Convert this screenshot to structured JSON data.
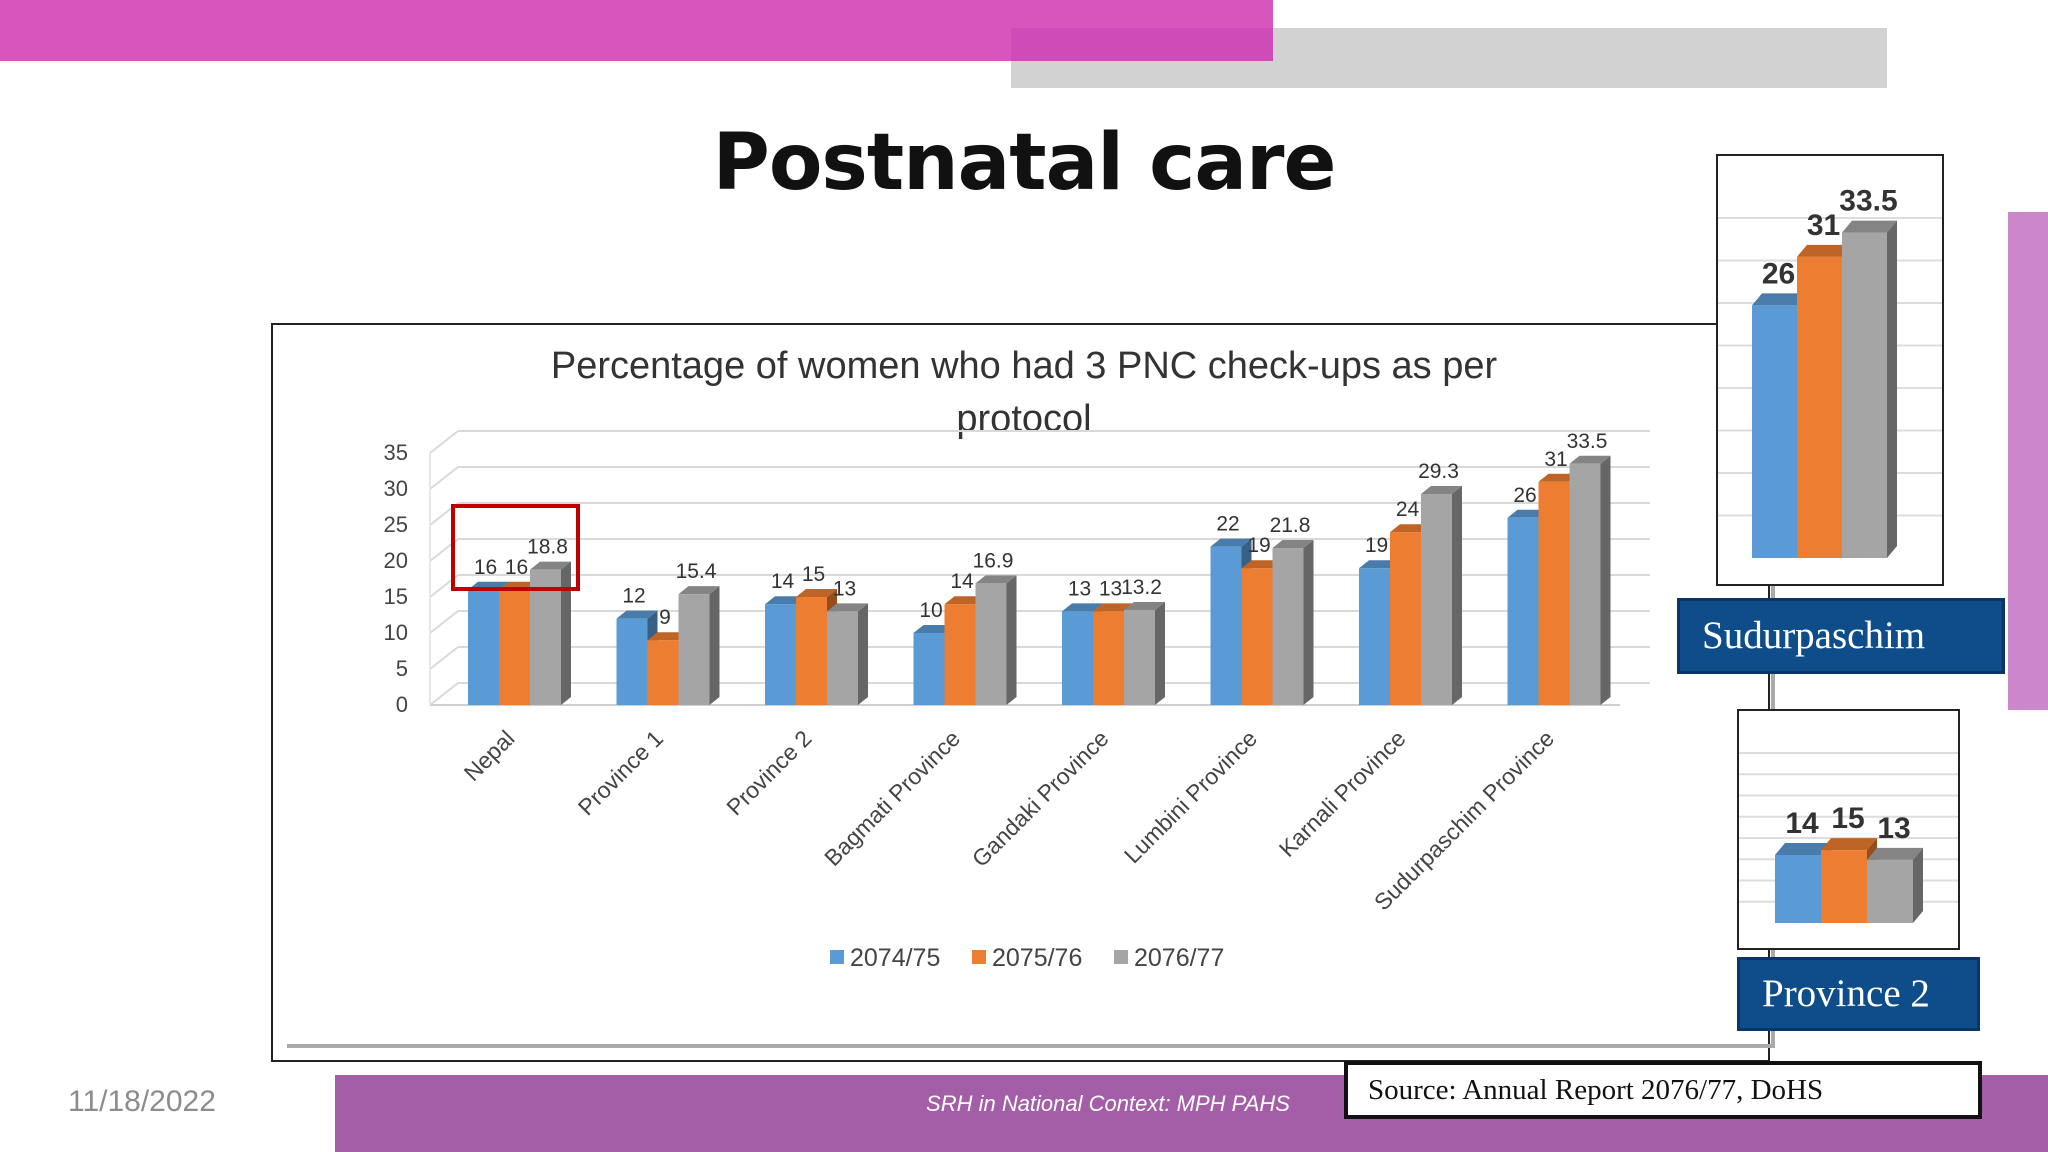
{
  "slide": {
    "title": "Postnatal care",
    "date": "11/18/2022",
    "footer": "SRH in National Context: MPH PAHS",
    "source": "Source: Annual Report 2076/77, DoHS",
    "callout_sudurpaschim": "Sudurpaschim",
    "callout_province2": "Province 2"
  },
  "colors": {
    "series": [
      "#5b9bd5",
      "#ed7d31",
      "#a5a5a5"
    ],
    "highlight_box": "#c00000",
    "accent_pink": "#d955be",
    "label_box": "#0f4c8a"
  },
  "chart_data": {
    "type": "bar",
    "title": "Percentage of women who had 3 PNC check-ups as per protocol",
    "title_lines": [
      "Percentage of women who had 3 PNC check-ups as per",
      "protocol"
    ],
    "categories": [
      "Nepal",
      "Province 1",
      "Province 2",
      "Bagmati Province",
      "Gandaki Province",
      "Lumbini Province",
      "Karnali Province",
      "Sudurpaschim Province"
    ],
    "series": [
      {
        "name": "2074/75",
        "values": [
          16,
          12,
          14,
          10,
          13,
          22,
          19,
          26
        ]
      },
      {
        "name": "2075/76",
        "values": [
          16,
          9,
          15,
          14,
          13,
          19,
          24,
          31
        ]
      },
      {
        "name": "2076/77",
        "values": [
          18.8,
          15.4,
          13,
          16.9,
          13.2,
          21.8,
          29.3,
          33.5
        ]
      }
    ],
    "yticks": [
      "0",
      "5",
      "10",
      "15",
      "20",
      "25",
      "30",
      "35"
    ],
    "ylim": [
      0,
      35
    ],
    "grid": true,
    "legend": "bottom",
    "highlighted_category": "Nepal",
    "insets": [
      {
        "category": "Sudurpaschim Province",
        "values": [
          26,
          31,
          33.5
        ],
        "labels": [
          "26",
          "31",
          "33.5"
        ]
      },
      {
        "category": "Province 2",
        "values": [
          14,
          15,
          13
        ],
        "labels": [
          "14",
          "15",
          "13"
        ]
      }
    ]
  }
}
